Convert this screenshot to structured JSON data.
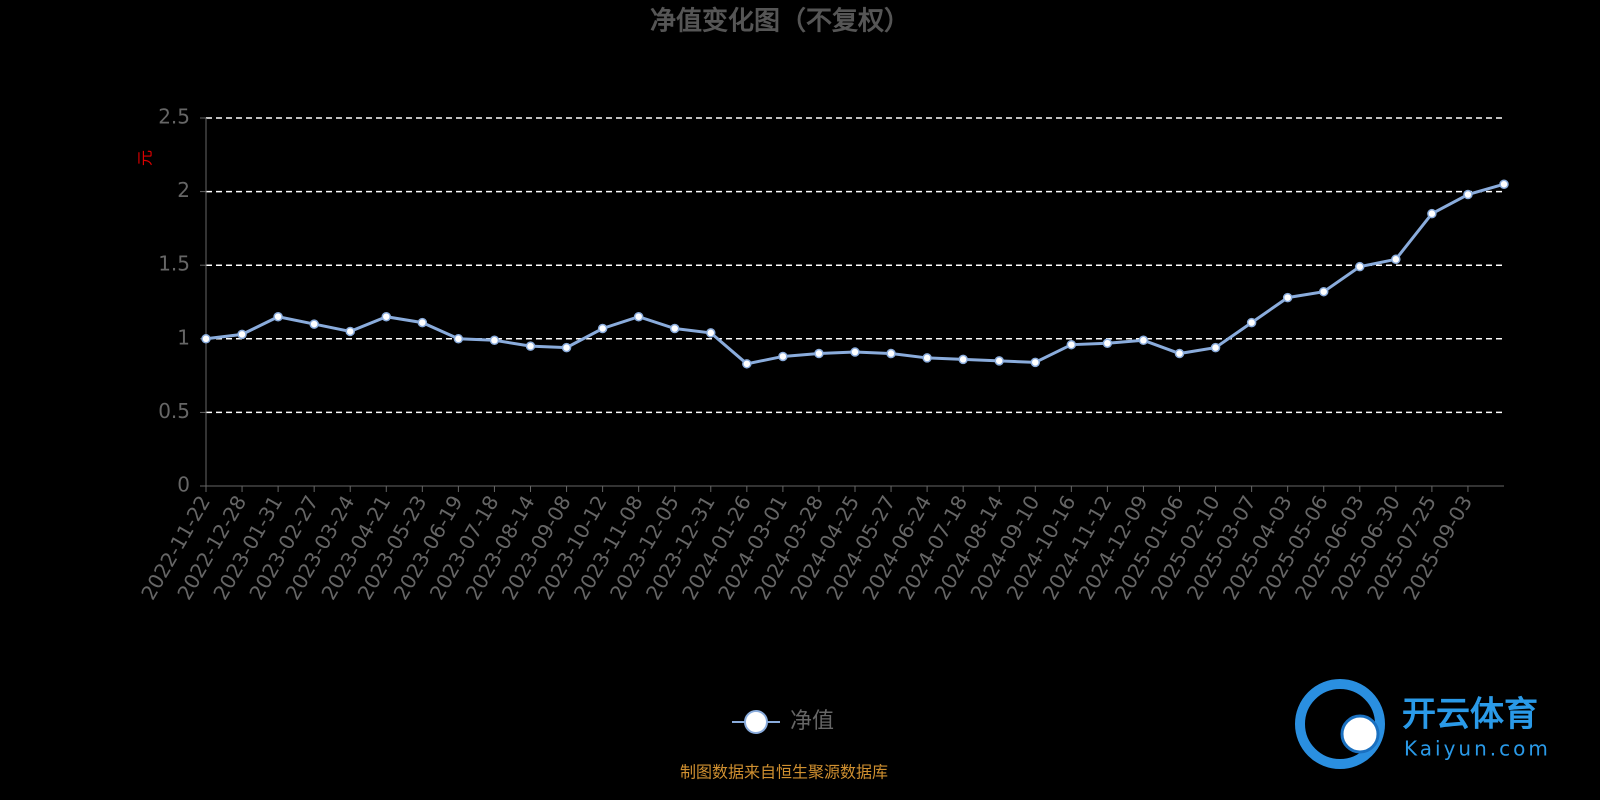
{
  "chart_data": {
    "type": "line",
    "title": "净值变化图（不复权）",
    "ylabel": "元",
    "categories": [
      "2022-11-22",
      "2022-12-28",
      "2023-01-31",
      "2023-02-27",
      "2023-03-24",
      "2023-04-21",
      "2023-05-23",
      "2023-06-19",
      "2023-07-18",
      "2023-08-14",
      "2023-09-08",
      "2023-10-12",
      "2023-11-08",
      "2023-12-05",
      "2023-12-31",
      "2024-01-26",
      "2024-03-01",
      "2024-03-28",
      "2024-04-25",
      "2024-05-27",
      "2024-06-24",
      "2024-07-18",
      "2024-08-14",
      "2024-09-10",
      "2024-10-16",
      "2024-11-12",
      "2024-12-09",
      "2025-01-06",
      "2025-02-10",
      "2025-03-07",
      "2025-04-03",
      "2025-05-06",
      "2025-06-03",
      "2025-06-30",
      "2025-07-25",
      "2025-09-03",
      null
    ],
    "series": [
      {
        "name": "净值",
        "color": "#8aacdc",
        "values": [
          1.0,
          1.03,
          1.15,
          1.1,
          1.05,
          1.15,
          1.11,
          1.0,
          0.99,
          0.95,
          0.94,
          1.07,
          1.15,
          1.07,
          1.04,
          0.83,
          0.88,
          0.9,
          0.91,
          0.9,
          0.87,
          0.86,
          0.85,
          0.84,
          0.96,
          0.97,
          0.99,
          0.9,
          0.94,
          1.11,
          1.28,
          1.32,
          1.49,
          1.54,
          1.85,
          1.98,
          2.05
        ]
      }
    ],
    "ylim": [
      0,
      2.5
    ],
    "yticks": [
      0,
      0.5,
      1,
      1.5,
      2,
      2.5
    ],
    "grid": true,
    "legend": "bottom",
    "source": "制图数据来自恒生聚源数据库"
  },
  "watermark": {
    "brand": "开云体育",
    "site": "Kaiyun.com"
  }
}
